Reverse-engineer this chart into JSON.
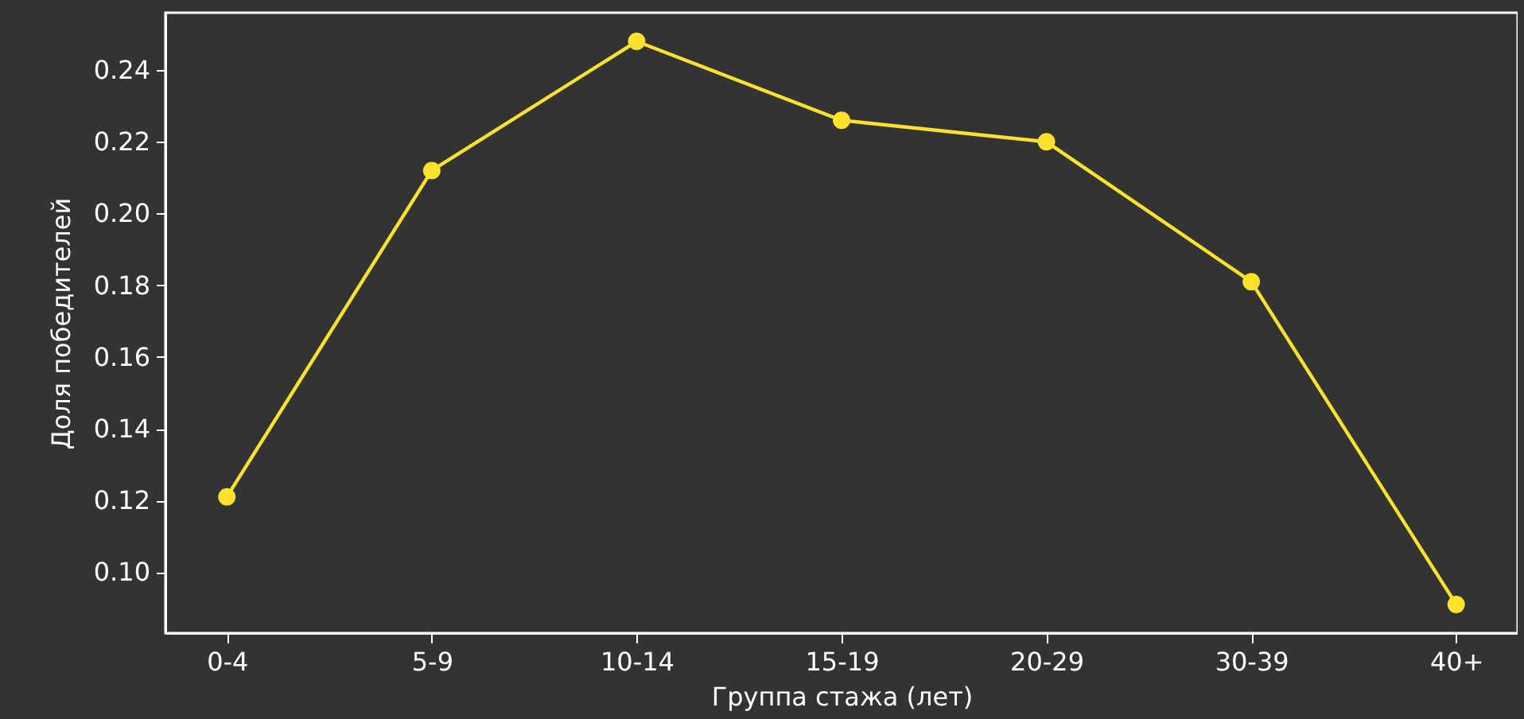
{
  "chart_data": {
    "type": "line",
    "xlabel": "Группа стажа (лет)",
    "ylabel": "Доля победителей",
    "categories": [
      "0-4",
      "5-9",
      "10-14",
      "15-19",
      "20-29",
      "30-39",
      "40+"
    ],
    "series": [
      {
        "color": "#fde12d",
        "values": [
          0.121,
          0.212,
          0.248,
          0.226,
          0.22,
          0.181,
          0.091
        ]
      }
    ],
    "ylim": [
      0.083,
      0.256
    ],
    "yticks": [
      {
        "value": 0.1,
        "label": "0.10"
      },
      0.12,
      0.14,
      0.16,
      0.18,
      {
        "value": 0.2,
        "label": "0.20"
      },
      0.22,
      0.24
    ],
    "marker": "circle",
    "line_style": "solid",
    "grid": false
  }
}
